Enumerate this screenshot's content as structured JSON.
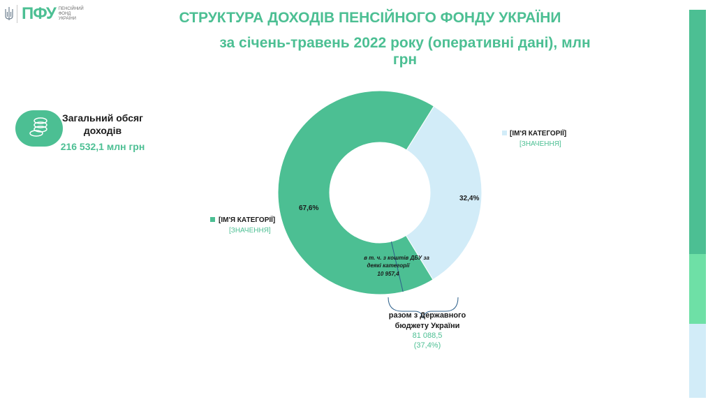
{
  "logo": {
    "abbr": "ПФУ",
    "name": "ПЕНСІЙНИЙ ФОНД УКРАЇНИ"
  },
  "header": {
    "title": "СТРУКТУРА  ДОХОДІВ ПЕНСІЙНОГО ФОНДУ УКРАЇНИ",
    "subtitle": "за січень-травень 2022 року (оперативні дані), млн грн"
  },
  "total": {
    "label": "Загальний обсяг доходів",
    "value": "216 532,1 млн грн",
    "icon": "coins-icon"
  },
  "colors": {
    "accent": "#4cbf93",
    "light": "#d2ecf8",
    "mid": "#6ee0a6"
  },
  "chart_data": {
    "type": "donut",
    "title": "СТРУКТУРА  ДОХОДІВ ПЕНСІЙНОГО ФОНДУ УКРАЇНИ",
    "slices": [
      {
        "pct_label": "67,6%",
        "value": 67.6,
        "color": "#4cbf93",
        "legend_name": "[ІМ'Я КАТЕГОРІЇ]",
        "legend_value": "[ЗНАЧЕННЯ]"
      },
      {
        "pct_label": "32,4%",
        "value": 32.4,
        "color": "#d2ecf8",
        "legend_name": "[ІМ'Я КАТЕГОРІЇ]",
        "legend_value": "[ЗНАЧЕННЯ]"
      }
    ],
    "subsegment": {
      "text_line1": "в т. ч. з коштів ДБУ за",
      "text_line2": "деякі категорії",
      "value": "10 957,4",
      "share_of_total": 5.06
    },
    "bracket": {
      "line1": "разом з Державного",
      "line2": "бюджету України",
      "value": "81 088,5",
      "pct": "(37,4%)"
    }
  },
  "sidebar_bar": [
    {
      "color": "#4cbf93",
      "share": 0.63
    },
    {
      "color": "#6ee0a6",
      "share": 0.18
    },
    {
      "color": "#d2ecf8",
      "share": 0.19
    }
  ]
}
